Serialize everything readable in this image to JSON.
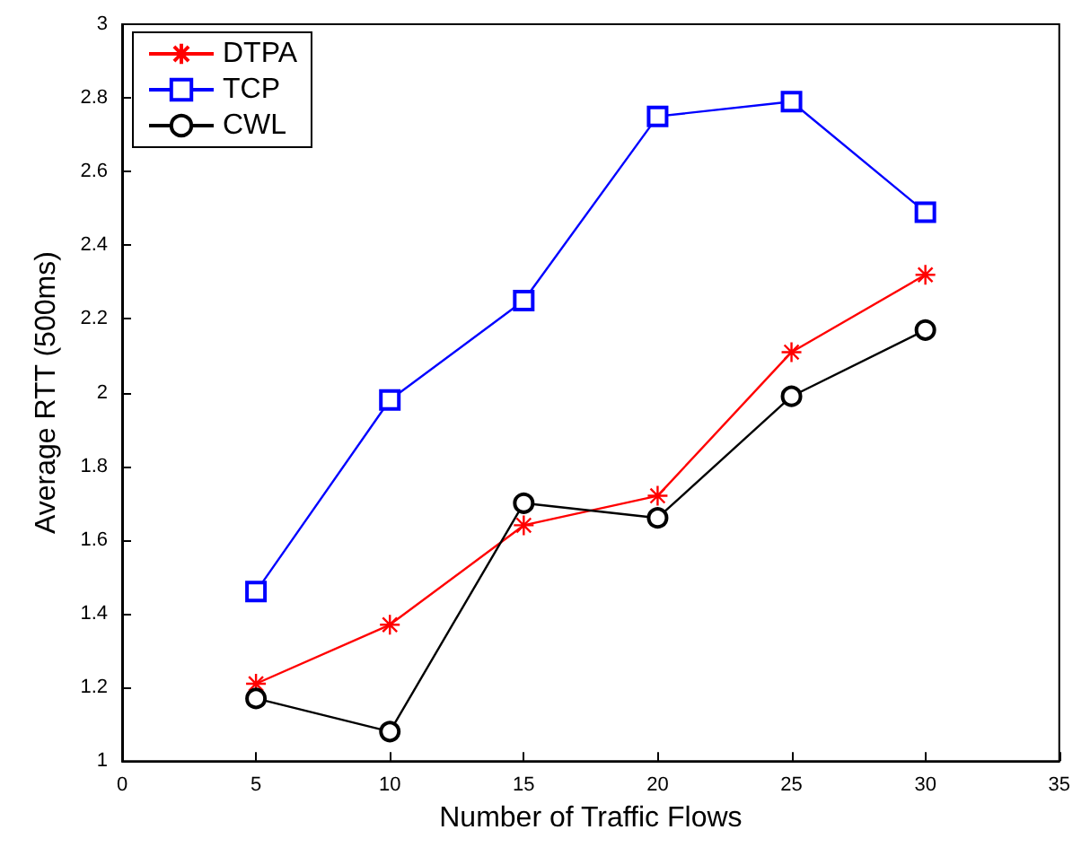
{
  "chart_data": {
    "type": "line",
    "xlabel": "Number of Traffic Flows",
    "ylabel": "Average RTT (500ms)",
    "x": [
      5,
      10,
      15,
      20,
      25,
      30
    ],
    "series": [
      {
        "name": "DTPA",
        "color": "#ff0000",
        "marker": "cross",
        "values": [
          1.21,
          1.37,
          1.64,
          1.72,
          2.11,
          2.32
        ]
      },
      {
        "name": "TCP",
        "color": "#0000ff",
        "marker": "square",
        "values": [
          1.46,
          1.98,
          2.25,
          2.75,
          2.79,
          2.49
        ]
      },
      {
        "name": "CWL",
        "color": "#000000",
        "marker": "circle",
        "values": [
          1.17,
          1.08,
          1.7,
          1.66,
          1.99,
          2.17
        ]
      }
    ],
    "xlim": [
      0,
      35
    ],
    "xticks": [
      0,
      5,
      10,
      15,
      20,
      25,
      30,
      35
    ],
    "ylim": [
      1,
      3
    ],
    "yticks": [
      1,
      1.2,
      1.4,
      1.6,
      1.8,
      2,
      2.2,
      2.4,
      2.6,
      2.8,
      3
    ],
    "grid": false,
    "legend": "top left",
    "line_style": "solid"
  }
}
